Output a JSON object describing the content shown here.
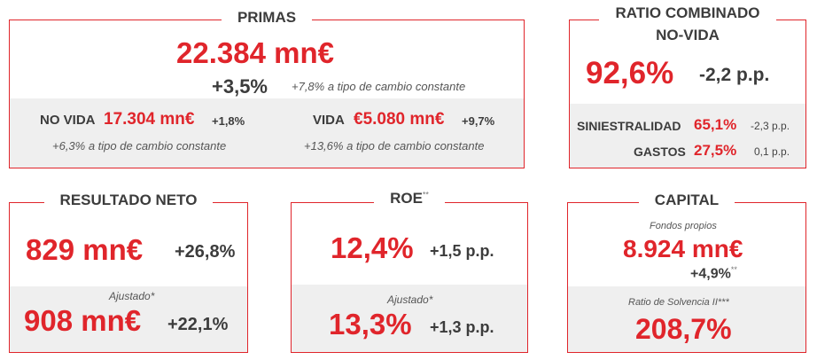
{
  "primas": {
    "title": "PRIMAS",
    "value": "22.384 mn€",
    "growth": "+3,5%",
    "growth_note": "+7,8% a tipo de cambio constante",
    "no_vida": {
      "label": "NO VIDA",
      "value": "17.304 mn€",
      "growth": "+1,8%",
      "note": "+6,3% a tipo de cambio constante"
    },
    "vida": {
      "label": "VIDA",
      "value": "€5.080 mn€",
      "growth": "+9,7%",
      "note": "+13,6% a tipo de cambio constante"
    }
  },
  "ratio": {
    "title_line1": "RATIO COMBINADO",
    "title_line2": "NO-VIDA",
    "value": "92,6%",
    "change": "-2,2 p.p.",
    "siniestralidad": {
      "label": "SINIESTRALIDAD",
      "value": "65,1%",
      "change": "-2,3 p.p."
    },
    "gastos": {
      "label": "GASTOS",
      "value": "27,5%",
      "change": "0,1 p.p."
    }
  },
  "resultado": {
    "title": "RESULTADO NETO",
    "value": "829 mn€",
    "growth": "+26,8%",
    "adjusted_label": "Ajustado*",
    "adjusted_value": "908 mn€",
    "adjusted_growth": "+22,1%"
  },
  "roe": {
    "title": "ROE",
    "title_sup": "**",
    "value": "12,4%",
    "change": "+1,5 p.p.",
    "adjusted_label": "Ajustado*",
    "adjusted_value": "13,3%",
    "adjusted_change": "+1,3 p.p."
  },
  "capital": {
    "title": "CAPITAL",
    "fondos_label": "Fondos propios",
    "fondos_value": "8.924 mn€",
    "fondos_growth": "+4,9%",
    "fondos_sup": "**",
    "solvencia_label": "Ratio de Solvencia II***",
    "solvencia_value": "208,7%"
  },
  "colors": {
    "accent": "#e0252b",
    "text": "#3c3c3c",
    "panel": "#efefef"
  }
}
